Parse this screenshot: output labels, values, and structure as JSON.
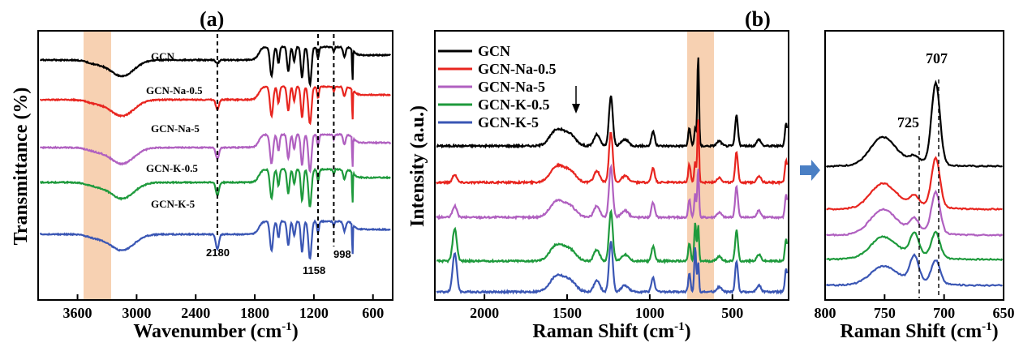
{
  "chart_data": [
    {
      "panel": "(a)",
      "type": "line",
      "xlabel": "Wavenumber (cm-1)",
      "ylabel": "Transmittance (%)",
      "x_ticks": [
        "3600",
        "3000",
        "2400",
        "1800",
        "1200",
        "600"
      ],
      "xlim": [
        4000,
        400
      ],
      "series": [
        {
          "name": "GCN",
          "color": "#000000"
        },
        {
          "name": "GCN-Na-0.5",
          "color": "#e8251f"
        },
        {
          "name": "GCN-Na-5",
          "color": "#b060c0"
        },
        {
          "name": "GCN-K-0.5",
          "color": "#1e9a3c"
        },
        {
          "name": "GCN-K-5",
          "color": "#3a56b4"
        }
      ],
      "annotations": [
        "2180",
        "1158",
        "998"
      ],
      "highlight_band": [
        3600,
        3300
      ]
    },
    {
      "panel": "(b)",
      "type": "line",
      "xlabel": "Raman Shift (cm-1)",
      "ylabel": "Intensity (a.u.)",
      "x_ticks": [
        "2000",
        "1500",
        "1000",
        "500"
      ],
      "xlim": [
        2300,
        160
      ],
      "legend": [
        "GCN",
        "GCN-Na-0.5",
        "GCN-Na-5",
        "GCN-K-0.5",
        "GCN-K-5"
      ],
      "legend_position": "top-left",
      "colors": [
        "#000000",
        "#e8251f",
        "#b060c0",
        "#1e9a3c",
        "#3a56b4"
      ],
      "highlight_band": [
        790,
        640
      ]
    },
    {
      "panel": "inset",
      "type": "line",
      "xlabel": "Raman Shift (cm-1)",
      "x_ticks": [
        "800",
        "750",
        "700",
        "650"
      ],
      "xlim": [
        800,
        650
      ],
      "annotations": [
        "707",
        "725"
      ],
      "colors": [
        "#000000",
        "#e8251f",
        "#b060c0",
        "#1e9a3c",
        "#3a56b4"
      ]
    }
  ],
  "labels": {
    "panel_a": "(a)",
    "panel_b": "(b)",
    "xlabel_a": "Wavenumber (cm",
    "xlabel_b": "Raman Shift (cm",
    "xlabel_c": "Raman Shift (cm",
    "xsup": "-1",
    "xclose": ")",
    "ylabel_a": "Transmittance (%)",
    "ylabel_b": "Intensity (a.u.)",
    "curve_a": [
      "GCN",
      "GCN-Na-0.5",
      "GCN-Na-5",
      "GCN-K-0.5",
      "GCN-K-5"
    ],
    "legend_b": [
      "GCN",
      "GCN-Na-0.5",
      "GCN-Na-5",
      "GCN-K-0.5",
      "GCN-K-5"
    ],
    "peaks_a": {
      "p2180": "2180",
      "p1158": "1158",
      "p998": "998"
    },
    "peaks_c": {
      "p707": "707",
      "p725": "725"
    },
    "ticks_a": [
      "3600",
      "3000",
      "2400",
      "1800",
      "1200",
      "600"
    ],
    "ticks_b": [
      "2000",
      "1500",
      "1000",
      "500"
    ],
    "ticks_c": [
      "800",
      "750",
      "700",
      "650"
    ]
  },
  "colors": {
    "series": [
      "#000000",
      "#e8251f",
      "#b060c0",
      "#1e9a3c",
      "#3a56b4"
    ],
    "highlight": "#f6c9a4",
    "arrow": "#4a7fc4"
  }
}
